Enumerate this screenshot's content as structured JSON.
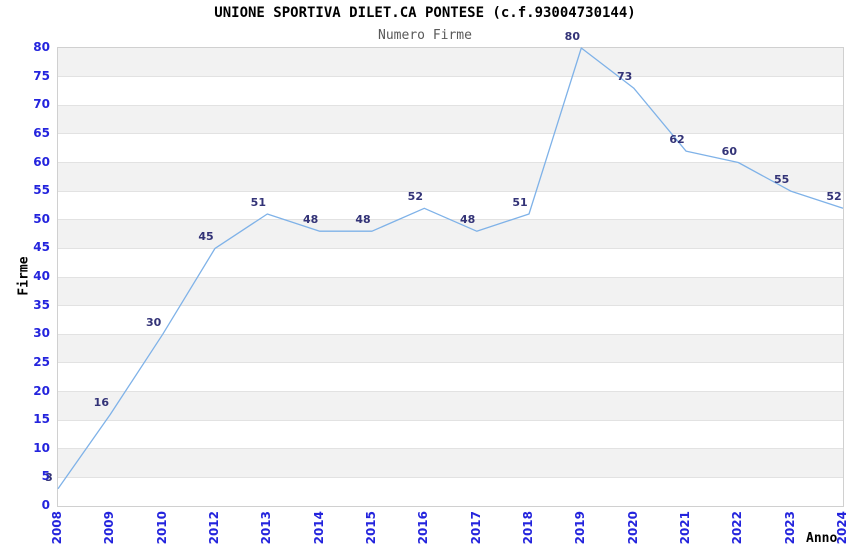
{
  "chart_data": {
    "type": "line",
    "title": "UNIONE SPORTIVA DILET.CA PONTESE (c.f.93004730144)",
    "subtitle": "Numero Firme",
    "xlabel": "Anno",
    "ylabel": "Firme",
    "categories": [
      "2008",
      "2009",
      "2010",
      "2012",
      "2013",
      "2014",
      "2015",
      "2016",
      "2017",
      "2018",
      "2019",
      "2020",
      "2021",
      "2022",
      "2023",
      "2024"
    ],
    "values": [
      3,
      16,
      30,
      45,
      51,
      48,
      48,
      52,
      48,
      51,
      80,
      73,
      62,
      60,
      55,
      52
    ],
    "ylim": [
      0,
      80
    ],
    "ytick_step": 5,
    "grid": "horizontal-gridlines-with-alternating-bands",
    "legend": "none",
    "markers": "none",
    "data_labels_shown": true
  },
  "colors": {
    "line": "#7fb2e8",
    "tick_label": "#2424dd",
    "data_label": "#333377",
    "band_fill": "#f2f2f2",
    "grid_line": "#e2e2e2",
    "plot_border": "#d0d0d0",
    "title": "#000000",
    "subtitle": "#595959",
    "background": "#ffffff"
  }
}
